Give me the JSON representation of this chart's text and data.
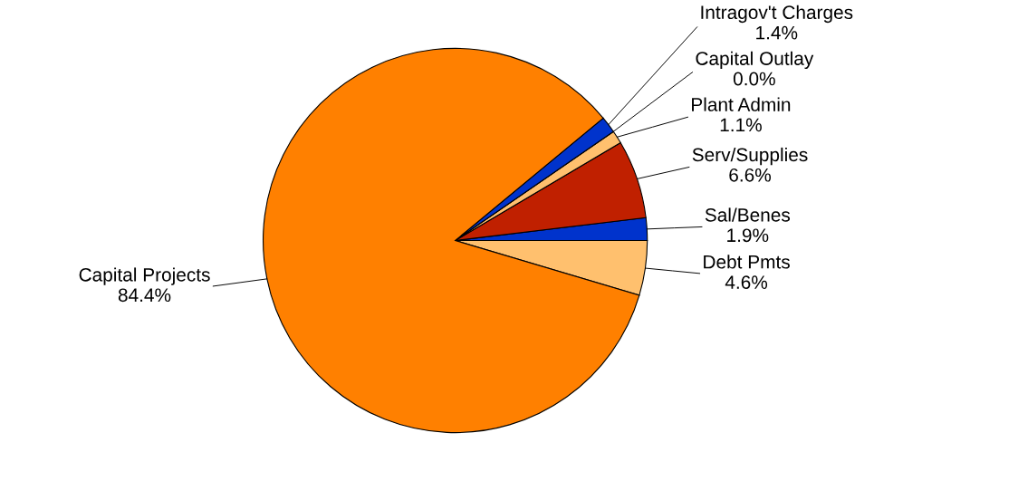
{
  "chart_data": {
    "type": "pie",
    "categories": [
      "Debt Pmts",
      "Sal/Benes",
      "Serv/Supplies",
      "Plant Admin",
      "Capital Outlay",
      "Intragov't Charges",
      "Capital Projects"
    ],
    "values": [
      4.6,
      1.9,
      6.6,
      1.1,
      0.0,
      1.4,
      84.4
    ],
    "colors": [
      "#ffc06e",
      "#0033cc",
      "#c02000",
      "#ffc06e",
      "#c02000",
      "#0033cc",
      "#ff8000"
    ],
    "value_labels": [
      "4.6%",
      "1.9%",
      "6.6%",
      "1.1%",
      "0.0%",
      "1.4%",
      "84.4%"
    ],
    "legend": false
  }
}
